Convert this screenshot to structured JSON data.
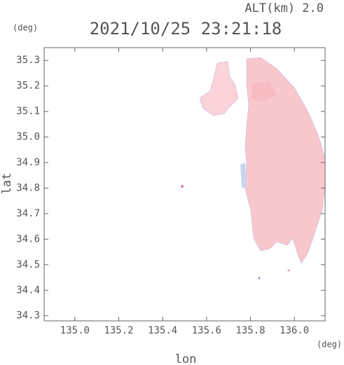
{
  "chart_data": {
    "type": "map",
    "title": "2021/10/25 23:21:18",
    "subtitle": "ALT(km) 2.0",
    "x_label": "lon",
    "y_label": "lat",
    "x_unit": "(deg)",
    "y_unit": "(deg)",
    "xlim": [
      134.86,
      136.14
    ],
    "ylim": [
      34.28,
      35.35
    ],
    "xticks": [
      {
        "value": 135,
        "label": "135.0"
      },
      135.2,
      135.4,
      135.6,
      135.8,
      {
        "value": 136,
        "label": "136.0"
      }
    ],
    "yticks": [
      34.3,
      34.4,
      34.5,
      34.6,
      34.7,
      34.8,
      34.9,
      {
        "value": 35,
        "label": "35.0"
      },
      35.1,
      35.2,
      35.3
    ],
    "color": "#f8c8cc"
  }
}
